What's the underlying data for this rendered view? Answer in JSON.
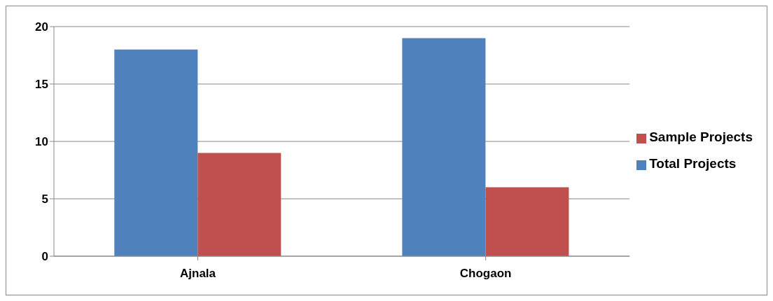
{
  "chart_data": {
    "type": "bar",
    "categories": [
      "Ajnala",
      "Chogaon"
    ],
    "series": [
      {
        "name": "Total Projects",
        "color": "#4f81bd",
        "values": [
          18,
          19
        ]
      },
      {
        "name": "Sample Projects",
        "color": "#c0504d",
        "values": [
          9,
          6
        ]
      }
    ],
    "ylim": [
      0,
      20
    ],
    "yticks": [
      0,
      5,
      10,
      15,
      20
    ],
    "grid": "y",
    "legend": "right"
  }
}
